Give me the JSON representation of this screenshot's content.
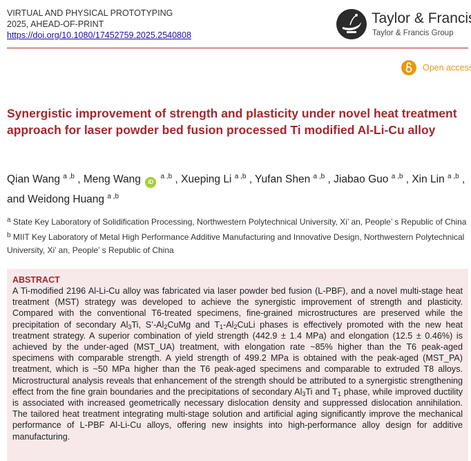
{
  "header": {
    "journal_name": "VIRTUAL AND PHYSICAL PROTOTYPING",
    "issue_line": "2025, AHEAD-OF-PRINT",
    "doi": "https://doi.org/10.1080/17452759.2025.2540808"
  },
  "publisher": {
    "name": "Taylor & Francis",
    "group": "Taylor & Francis Group",
    "icon": "lamp-logo-icon"
  },
  "access": {
    "label": "Open access",
    "icon": "open-access-icon",
    "color": "#e8960f"
  },
  "colors": {
    "title": "#a4272d",
    "rule": "#b7262a",
    "abstract_bg": "#f7e9ea",
    "orcid": "#a6ce39"
  },
  "title": "Synergistic improvement of strength and plasticity under novel heat treatment approach for laser powder bed fusion processed Ti modified Al-Li-Cu alloy",
  "authors": [
    {
      "name": "Qian Wang",
      "aff": "a ,b",
      "sep": " , "
    },
    {
      "name": "Meng Wang",
      "aff": "a ,b",
      "sep": " , ",
      "orcid": true
    },
    {
      "name": "Xueping Li",
      "aff": "a ,b",
      "sep": " , "
    },
    {
      "name": "Yufan Shen",
      "aff": "a ,b",
      "sep": " , "
    },
    {
      "name": "Jiabao Guo",
      "aff": "a ,b",
      "sep": " , "
    },
    {
      "name": "Xin Lin",
      "aff": "a ,b",
      "sep": " , and "
    },
    {
      "name": "Weidong Huang",
      "aff": "a ,b",
      "sep": ""
    }
  ],
  "orcid_label": "iD",
  "affiliations": [
    {
      "mark": "a",
      "text": " State Key Laboratory of Solidification Processing, Northwestern Polytechnical University, Xi’ an, People’ s Republic of China "
    },
    {
      "mark": "b",
      "text": " MIIT Key Laboratory of Metal High Performance Additive Manufacturing and Innovative Design, Northwestern Polytechnical University, Xi’ an, People’ s Republic of China"
    }
  ],
  "abstract": {
    "heading": "ABSTRACT",
    "segments": [
      {
        "t": "A Ti-modified 2196 Al-Li-Cu alloy was fabricated via laser powder bed fusion (L-PBF), and a novel multi-stage heat treatment (MST) strategy was developed to achieve the synergistic improvement of strength and plasticity. Compared with the conventional T6-treated specimens, fine-grained microstructures are preserved while the precipitation of secondary Al"
      },
      {
        "sub": "3"
      },
      {
        "t": "Ti, S’-Al"
      },
      {
        "sub": "2"
      },
      {
        "t": "CuMg and T"
      },
      {
        "sub": "1"
      },
      {
        "t": "-Al"
      },
      {
        "sub": "2"
      },
      {
        "t": "CuLi phases is effectively promoted with the new heat treatment strategy. A superior combination of yield strength (442.9 ± 1.4 MPa) and elongation (12.5 ± 0.46%) is achieved by the under-aged (MST_UA) treatment, with elongation rate ~85% higher than the T6 peak-aged specimens with comparable strength. A yield strength of 499.2 MPa is obtained with the peak-aged (MST_PA) treatment, which is ~50 MPa higher than the T6 peak-aged specimens and comparable to extruded T8 alloys. Microstructural analysis reveals that enhancement of the strength should be attributed to a synergistic strengthening effect from the fine grain boundaries and the precipitations of secondary Al"
      },
      {
        "sub": "3"
      },
      {
        "t": "Ti and T"
      },
      {
        "sub": "1"
      },
      {
        "t": " phase, while improved ductility is associated with increased geometrically necessary dislocation density and suppressed dislocation annihilation. The tailored heat treatment integrating multi-stage solution and artificial aging significantly improve the mechanical performance of L-PBF Al-Li-Cu alloys, offering new insights into high-performance alloy design for additive manufacturing."
      }
    ]
  }
}
